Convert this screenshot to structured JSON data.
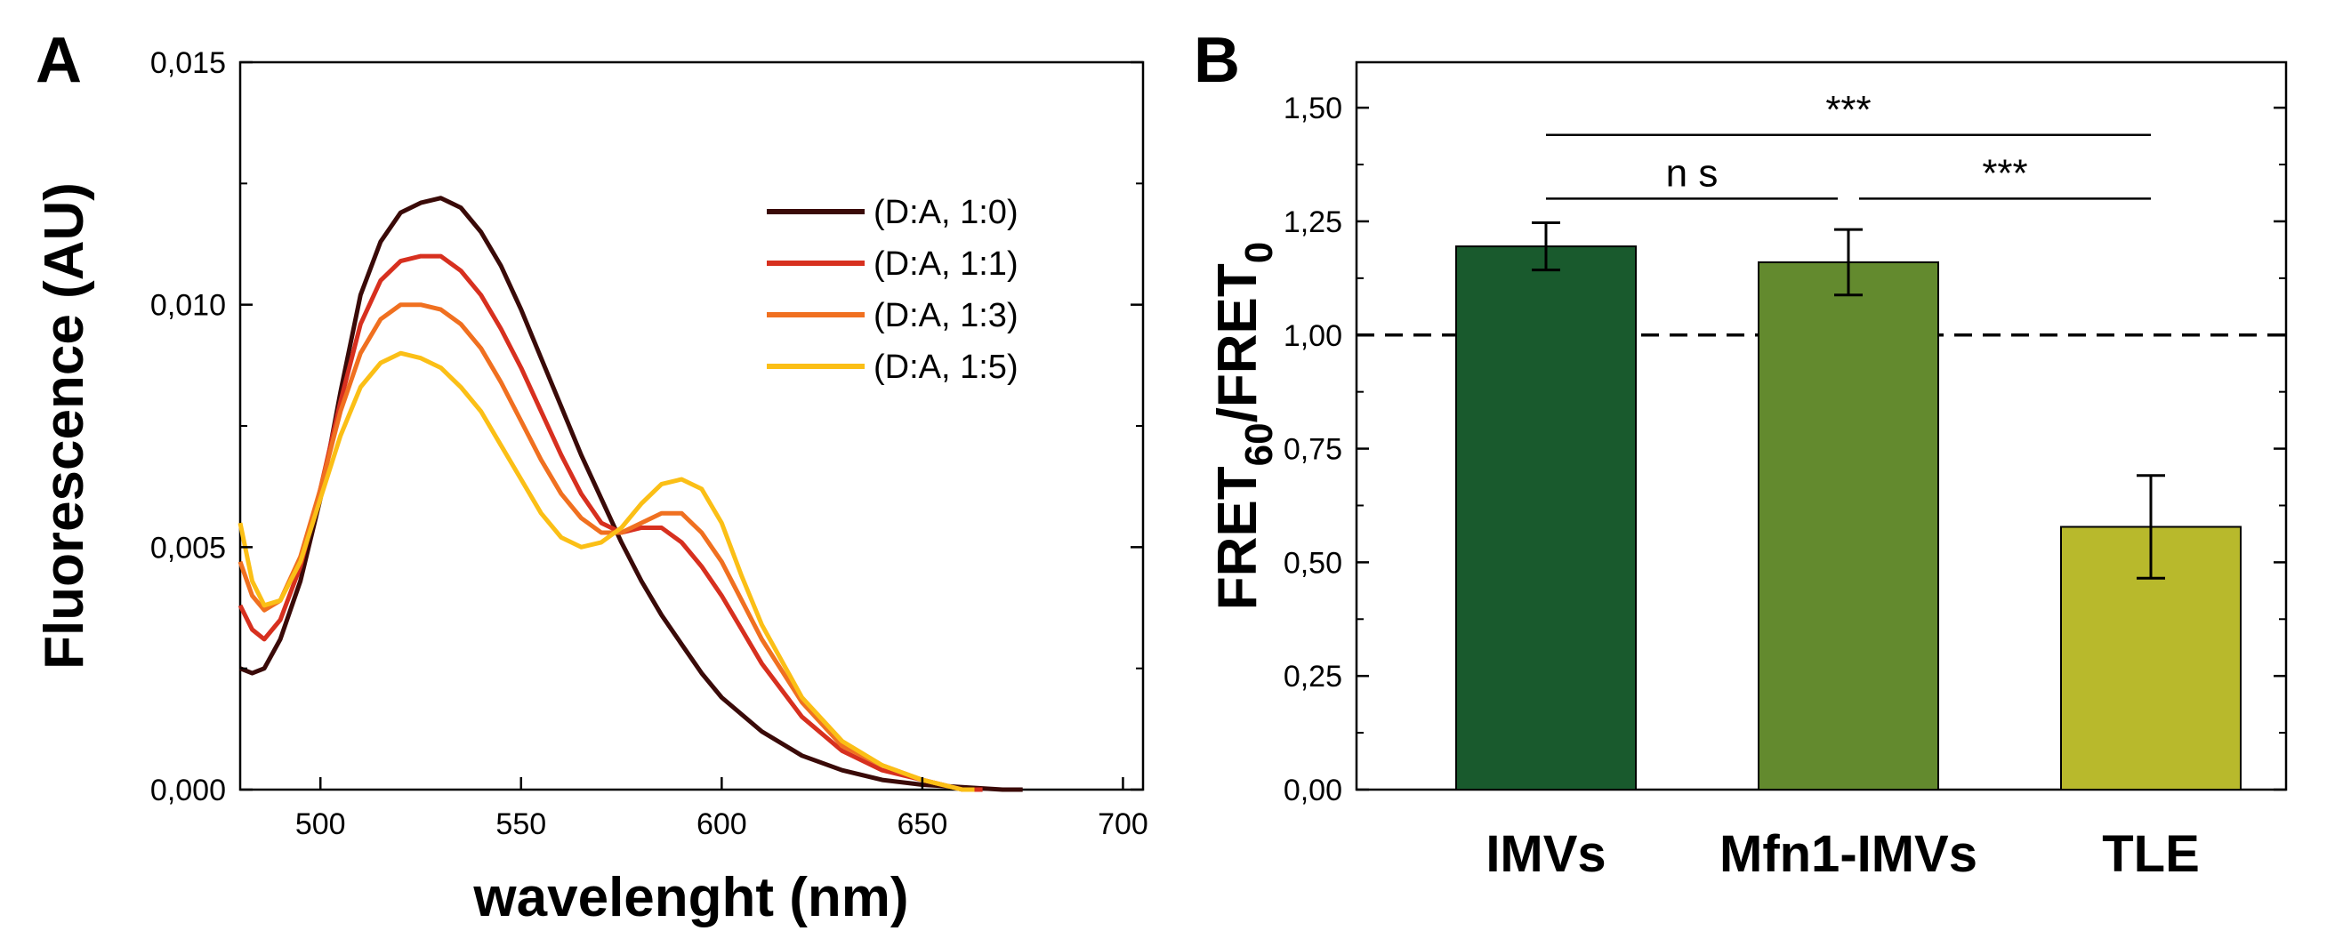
{
  "chart_data": [
    {
      "panel": "A",
      "type": "line",
      "xlabel": "wavelenght (nm)",
      "ylabel": "Fluorescence (AU)",
      "xlim": [
        480,
        705
      ],
      "ylim": [
        0,
        0.015
      ],
      "xticks": [
        500,
        550,
        600,
        650,
        700
      ],
      "xtick_labels": [
        "500",
        "550",
        "600",
        "650",
        "700"
      ],
      "yticks": [
        0,
        0.005,
        0.01,
        0.015
      ],
      "ytick_labels": [
        "0,000",
        "0,005",
        "0,010",
        "0,015"
      ],
      "legend_position": "top-right",
      "series": [
        {
          "name": "(D:A, 1:0)",
          "color": "#3a0a08",
          "x": [
            480,
            483,
            486,
            490,
            495,
            500,
            505,
            510,
            515,
            520,
            525,
            530,
            535,
            540,
            545,
            550,
            555,
            560,
            565,
            570,
            575,
            580,
            585,
            590,
            595,
            600,
            610,
            620,
            630,
            640,
            650,
            660,
            670,
            675
          ],
          "y": [
            0.0025,
            0.0024,
            0.0025,
            0.0031,
            0.0043,
            0.006,
            0.0082,
            0.0102,
            0.0113,
            0.0119,
            0.0121,
            0.0122,
            0.012,
            0.0115,
            0.0108,
            0.0099,
            0.0089,
            0.0079,
            0.0069,
            0.006,
            0.0051,
            0.0043,
            0.0036,
            0.003,
            0.0024,
            0.0019,
            0.0012,
            0.0007,
            0.0004,
            0.0002,
            0.0001,
            5e-05,
            0.0,
            0.0
          ]
        },
        {
          "name": "(D:A, 1:1)",
          "color": "#d7301f",
          "x": [
            480,
            483,
            486,
            490,
            495,
            500,
            505,
            510,
            515,
            520,
            525,
            530,
            535,
            540,
            545,
            550,
            555,
            560,
            565,
            570,
            575,
            580,
            585,
            590,
            595,
            600,
            605,
            610,
            620,
            630,
            640,
            650,
            660,
            665
          ],
          "y": [
            0.0038,
            0.0033,
            0.0031,
            0.0035,
            0.0046,
            0.0062,
            0.008,
            0.0096,
            0.0105,
            0.0109,
            0.011,
            0.011,
            0.0107,
            0.0102,
            0.0095,
            0.0087,
            0.0078,
            0.0069,
            0.0061,
            0.0055,
            0.0053,
            0.0054,
            0.0054,
            0.0051,
            0.0046,
            0.004,
            0.0033,
            0.0026,
            0.0015,
            0.0008,
            0.0004,
            0.0002,
            0.0,
            0.0
          ]
        },
        {
          "name": "(D:A, 1:3)",
          "color": "#f07020",
          "x": [
            480,
            483,
            486,
            490,
            495,
            500,
            505,
            510,
            515,
            520,
            525,
            530,
            535,
            540,
            545,
            550,
            555,
            560,
            565,
            570,
            575,
            580,
            585,
            590,
            595,
            600,
            605,
            610,
            620,
            630,
            640,
            650,
            660,
            663
          ],
          "y": [
            0.0047,
            0.004,
            0.0037,
            0.0039,
            0.0048,
            0.0062,
            0.0078,
            0.009,
            0.0097,
            0.01,
            0.01,
            0.0099,
            0.0096,
            0.0091,
            0.0084,
            0.0076,
            0.0068,
            0.0061,
            0.0056,
            0.0053,
            0.0053,
            0.0055,
            0.0057,
            0.0057,
            0.0053,
            0.0047,
            0.0039,
            0.0031,
            0.0018,
            0.0009,
            0.0005,
            0.0002,
            0.0,
            0.0
          ]
        },
        {
          "name": "(D:A, 1:5)",
          "color": "#fbbf16",
          "x": [
            480,
            483,
            486,
            490,
            495,
            500,
            505,
            510,
            515,
            520,
            525,
            530,
            535,
            540,
            545,
            550,
            555,
            560,
            565,
            570,
            575,
            580,
            585,
            590,
            595,
            600,
            605,
            610,
            620,
            630,
            640,
            650,
            660,
            663
          ],
          "y": [
            0.0055,
            0.0043,
            0.0038,
            0.0039,
            0.0047,
            0.006,
            0.0073,
            0.0083,
            0.0088,
            0.009,
            0.0089,
            0.0087,
            0.0083,
            0.0078,
            0.0071,
            0.0064,
            0.0057,
            0.0052,
            0.005,
            0.0051,
            0.0054,
            0.0059,
            0.0063,
            0.0064,
            0.0062,
            0.0055,
            0.0044,
            0.0034,
            0.0019,
            0.001,
            0.0005,
            0.0002,
            0.0,
            0.0
          ]
        }
      ]
    },
    {
      "panel": "B",
      "type": "bar",
      "ylabel_main": "FRET",
      "ylabel_sub1": "60",
      "ylabel_mid": "/FRET",
      "ylabel_sub2": "0",
      "xlabel": "",
      "ylim": [
        0,
        1.6
      ],
      "yticks": [
        0,
        0.25,
        0.5,
        0.75,
        1.0,
        1.25,
        1.5
      ],
      "ytick_labels": [
        "0,00",
        "0,25",
        "0,50",
        "0,75",
        "1,00",
        "1,25",
        "1,50"
      ],
      "categories": [
        "IMVs",
        "Mfn1-IMVs",
        "TLE"
      ],
      "values": [
        1.195,
        1.16,
        0.578
      ],
      "errors": [
        0.052,
        0.072,
        0.113
      ],
      "colors": [
        "#195a2d",
        "#638a2e",
        "#b8b92c"
      ],
      "reference_line": 1.0,
      "significance": [
        {
          "from": 0,
          "to": 1,
          "label": "n s",
          "level": 1.3
        },
        {
          "from": 1,
          "to": 2,
          "label": "***",
          "level": 1.3
        },
        {
          "from": 0,
          "to": 2,
          "label": "***",
          "level": 1.44
        }
      ]
    }
  ]
}
